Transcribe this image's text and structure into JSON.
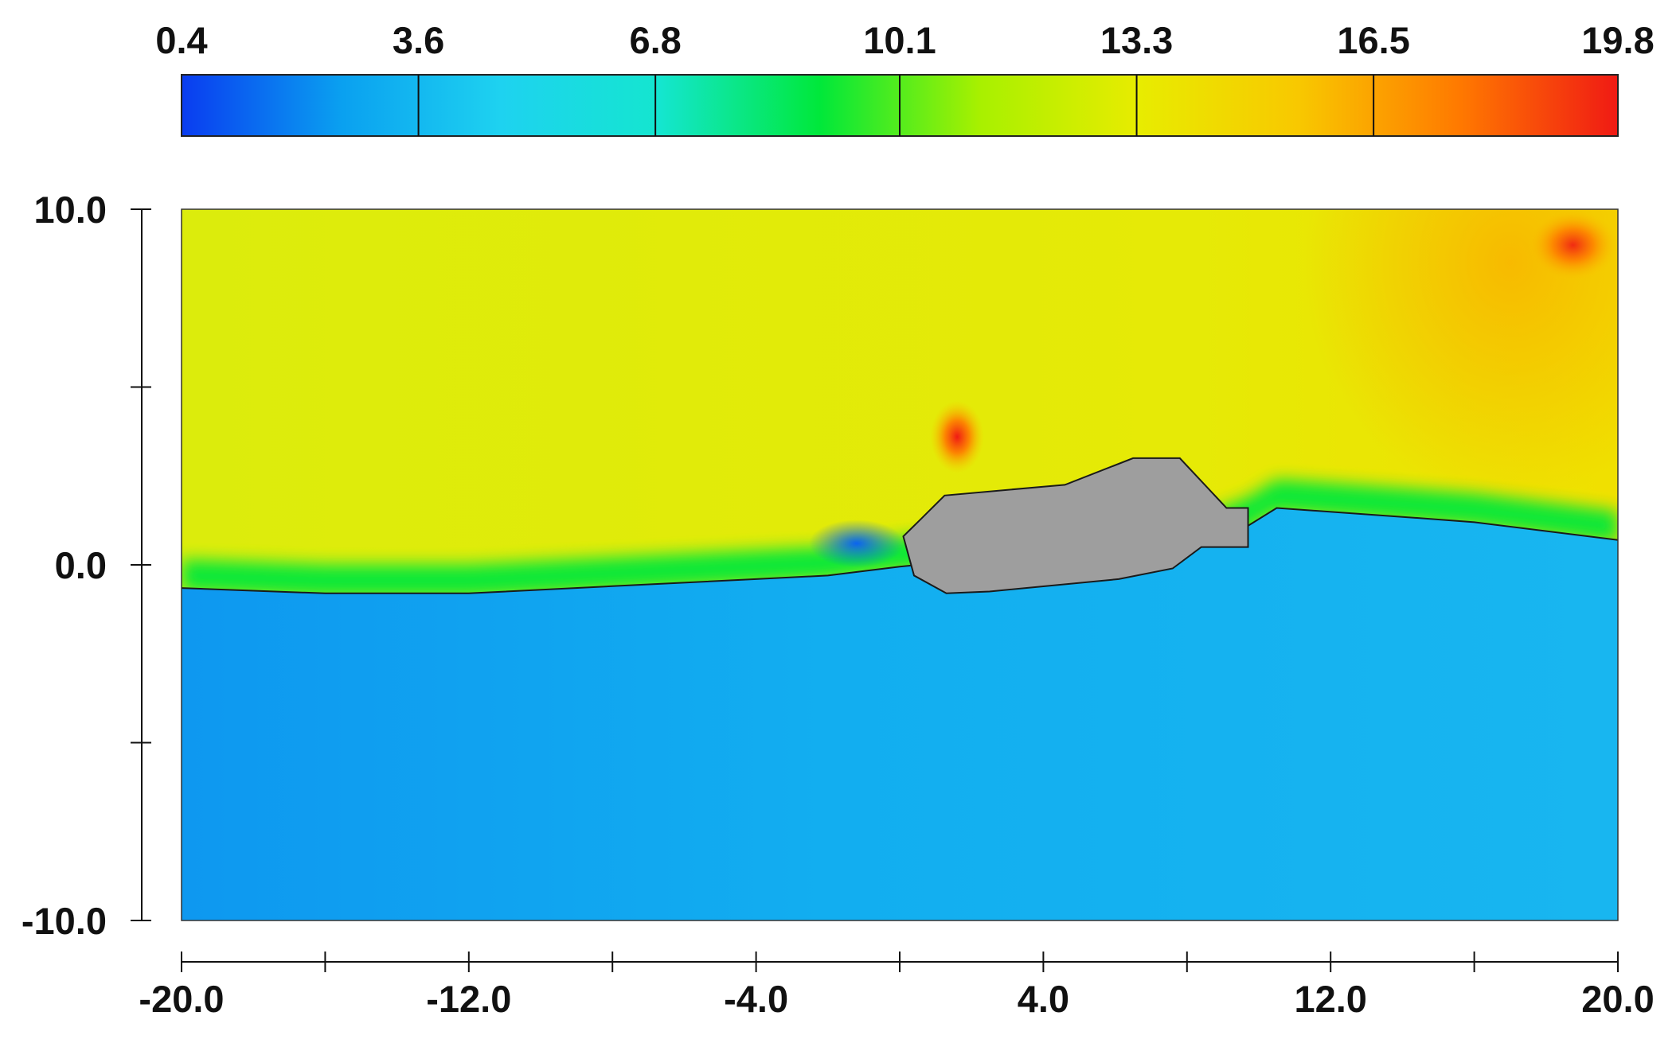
{
  "chart_data": {
    "type": "heatmap",
    "title": "",
    "xlabel": "",
    "ylabel": "",
    "xlim": [
      -20.0,
      20.0
    ],
    "ylim": [
      -10.0,
      10.0
    ],
    "grid": false,
    "x_ticks": [
      {
        "value": -20.0,
        "label": "-20.0"
      },
      {
        "value": -16.0,
        "label": ""
      },
      {
        "value": -12.0,
        "label": "-12.0"
      },
      {
        "value": -8.0,
        "label": ""
      },
      {
        "value": -4.0,
        "label": "-4.0"
      },
      {
        "value": 0.0,
        "label": ""
      },
      {
        "value": 4.0,
        "label": "4.0"
      },
      {
        "value": 8.0,
        "label": ""
      },
      {
        "value": 12.0,
        "label": "12.0"
      },
      {
        "value": 16.0,
        "label": ""
      },
      {
        "value": 20.0,
        "label": "20.0"
      }
    ],
    "y_ticks": [
      {
        "value": 10.0,
        "label": "10.0"
      },
      {
        "value": 5.0,
        "label": ""
      },
      {
        "value": 0.0,
        "label": "0.0"
      },
      {
        "value": -5.0,
        "label": ""
      },
      {
        "value": -10.0,
        "label": "-10.0"
      }
    ],
    "colorbar": {
      "placement": "top",
      "range": [
        0.4,
        19.8
      ],
      "ticks": [
        0.4,
        3.6,
        6.8,
        10.1,
        13.3,
        16.5,
        19.8
      ],
      "tick_labels": [
        "0.4",
        "3.6",
        "6.8",
        "10.1",
        "13.3",
        "16.5",
        "19.8"
      ],
      "colors": [
        "#0a3cf0",
        "#0aa0f0",
        "#1ed2f0",
        "#14e6cf",
        "#00e83a",
        "#a8f000",
        "#e8ec00",
        "#f8c800",
        "#ff7a00",
        "#f01a14"
      ]
    },
    "field": {
      "water_color": "#18b6f0",
      "air_color": "#dcec0c",
      "hot_color": "#f8b800",
      "peak_color": "#f01a14",
      "interface_color": "#00e83a",
      "low_color": "#0a64f0"
    },
    "free_surface": {
      "x": [
        -20.0,
        -16.0,
        -12.0,
        -8.0,
        -4.0,
        -2.0,
        0.0,
        1.0,
        8.0,
        9.7,
        10.5,
        14.0,
        16.0,
        20.0
      ],
      "y": [
        -0.65,
        -0.8,
        -0.8,
        -0.6,
        -0.4,
        -0.3,
        -0.05,
        0.05,
        0.4,
        1.1,
        1.6,
        1.35,
        1.2,
        0.7
      ]
    },
    "body": {
      "color": "#9e9e9e",
      "x": [
        0.1,
        0.6,
        1.25,
        4.0,
        4.6,
        6.5,
        7.8,
        9.1,
        9.7,
        9.7,
        8.4,
        7.6,
        6.1,
        2.5,
        1.3,
        0.4,
        0.1
      ],
      "y": [
        0.8,
        1.3,
        1.95,
        2.2,
        2.25,
        3.0,
        3.0,
        1.6,
        1.6,
        0.5,
        0.5,
        -0.1,
        -0.4,
        -0.75,
        -0.8,
        -0.3,
        0.8
      ]
    },
    "hotspots": [
      {
        "x": 1.6,
        "y": 3.6,
        "value": 19.8
      },
      {
        "x": -1.2,
        "y": 0.6,
        "value": 0.4
      }
    ]
  }
}
